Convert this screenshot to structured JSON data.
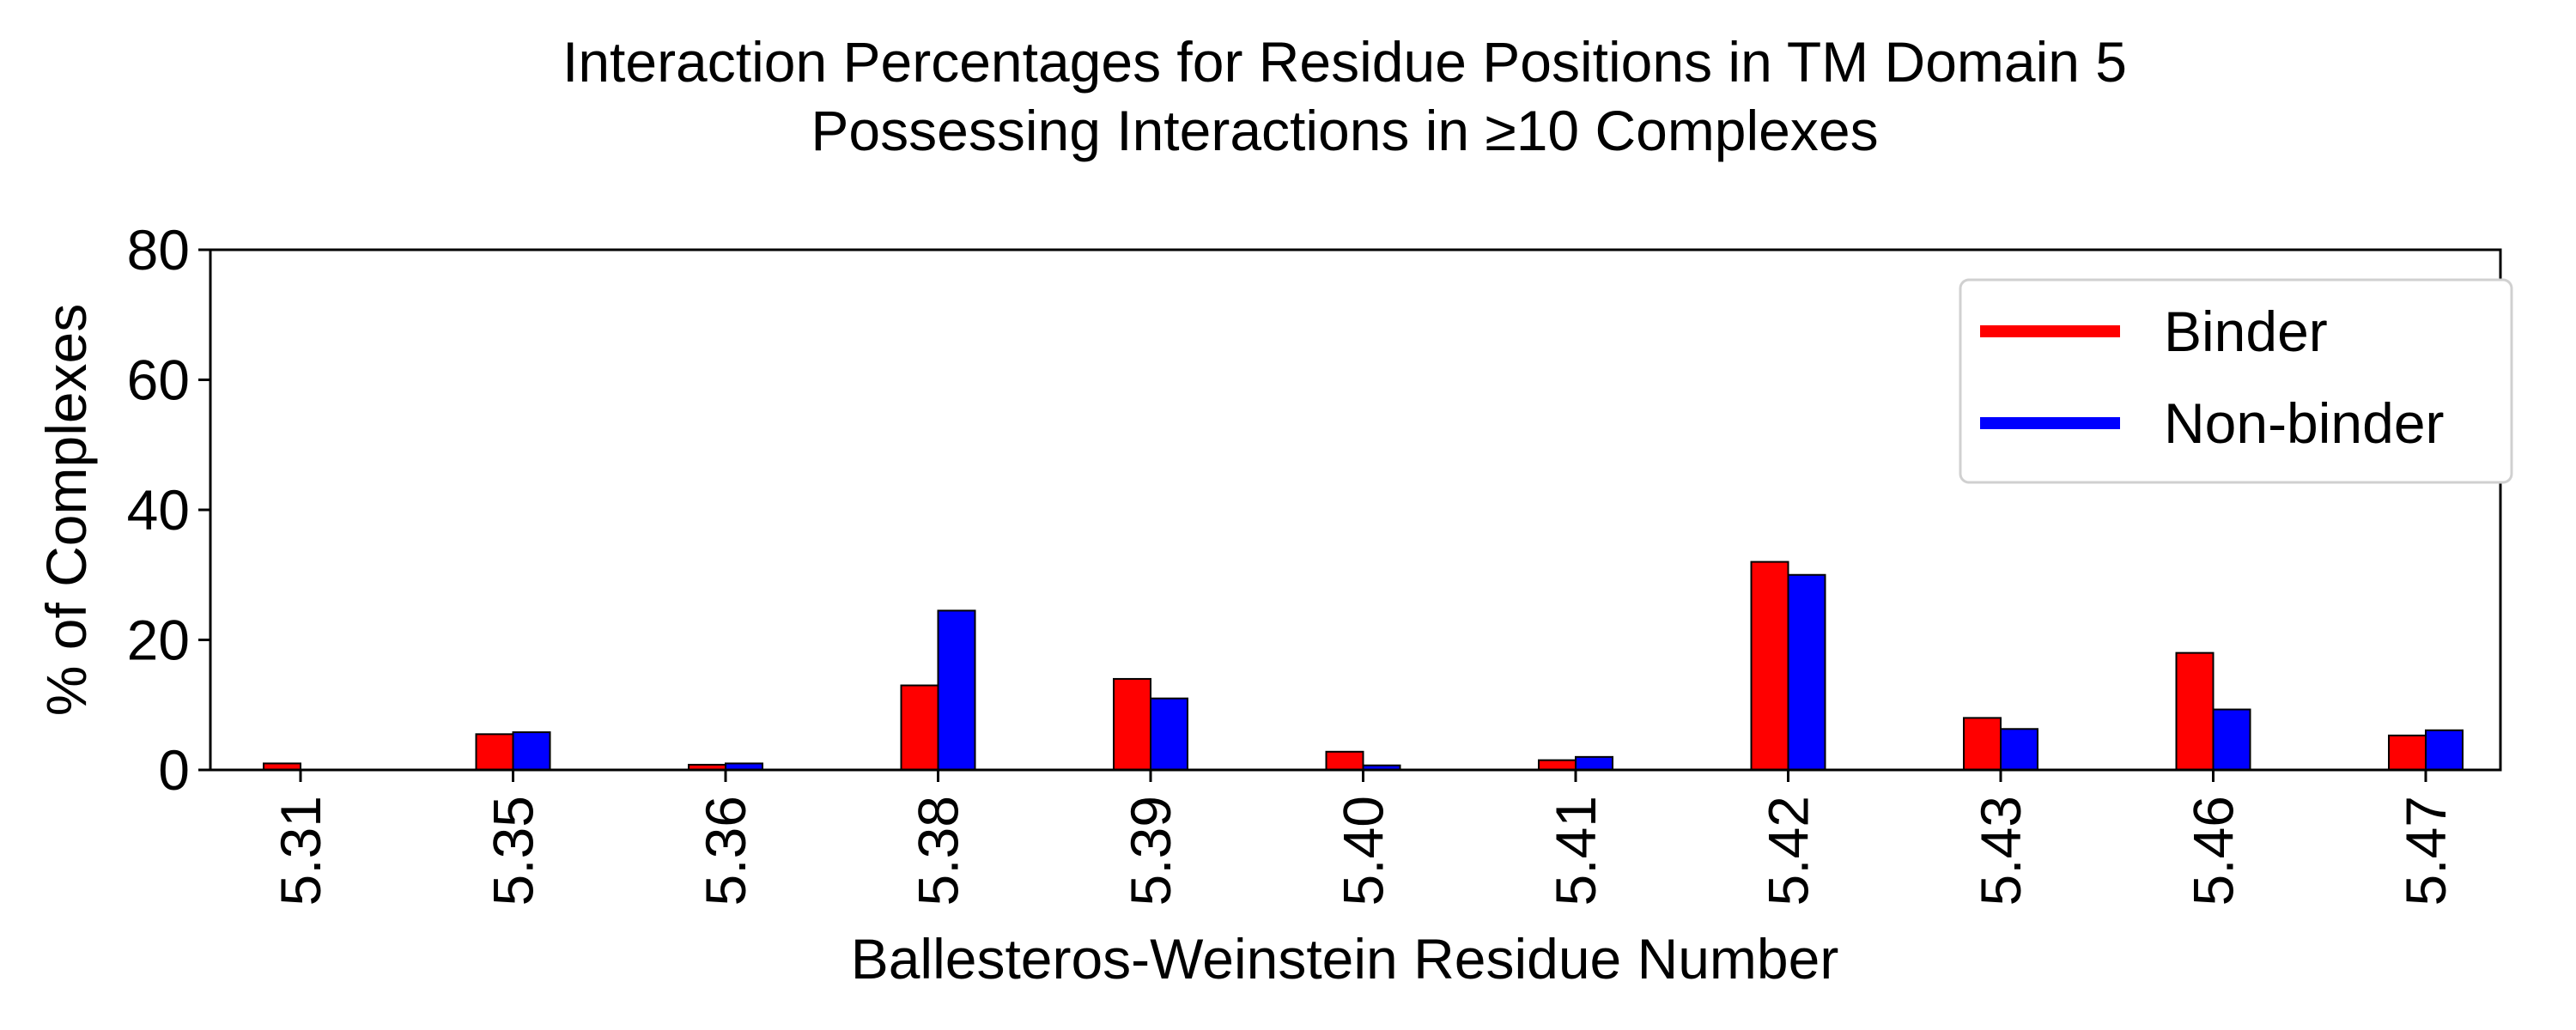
{
  "chart_data": {
    "type": "bar",
    "title": "Interaction Percentages for Residue Positions in TM Domain 5",
    "subtitle": "Possessing Interactions in ≥10 Complexes",
    "xlabel": "Ballesteros-Weinstein Residue Number",
    "ylabel": "% of Complexes",
    "ylim": [
      0,
      80
    ],
    "yticks": [
      "0",
      "20",
      "40",
      "60",
      "80"
    ],
    "categories": [
      "5.31",
      "5.35",
      "5.36",
      "5.38",
      "5.39",
      "5.40",
      "5.41",
      "5.42",
      "5.43",
      "5.46",
      "5.47"
    ],
    "series": [
      {
        "name": "Binder",
        "color": "#ff0000",
        "values": [
          1.0,
          5.5,
          0.8,
          13.0,
          14.0,
          2.8,
          1.5,
          32.0,
          8.0,
          18.0,
          5.3
        ]
      },
      {
        "name": "Non-binder",
        "color": "#0000ff",
        "values": [
          0.0,
          5.8,
          1.0,
          24.5,
          11.0,
          0.7,
          2.0,
          30.0,
          6.3,
          9.3,
          6.1
        ]
      }
    ],
    "legend_position": "top-right",
    "grid": false
  }
}
